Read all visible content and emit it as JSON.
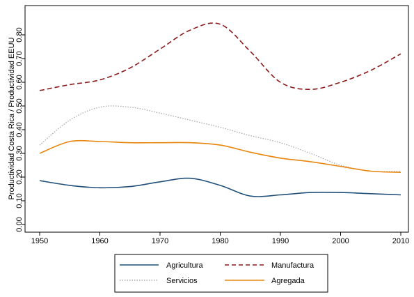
{
  "chart_data": {
    "type": "line",
    "title": "",
    "xlabel": "",
    "ylabel": "Productividad Costa Rica / Productividad EEUU",
    "xlim": [
      1950,
      2010
    ],
    "ylim": [
      0,
      0.85
    ],
    "x_ticks": [
      "1950",
      "1960",
      "1970",
      "1980",
      "1990",
      "2000",
      "2010"
    ],
    "y_ticks": [
      "0.00",
      "0.10",
      "0.20",
      "0.30",
      "0.40",
      "0.50",
      "0.60",
      "0.70",
      "0.80"
    ],
    "grid": false,
    "legend_position": "bottom",
    "series": [
      {
        "name": "Agricultura",
        "color": "#1f4e79",
        "style": "solid",
        "x": [
          1950,
          1955,
          1960,
          1965,
          1970,
          1975,
          1980,
          1985,
          1990,
          1995,
          2000,
          2005,
          2010
        ],
        "y": [
          0.185,
          0.165,
          0.155,
          0.16,
          0.18,
          0.195,
          0.165,
          0.12,
          0.125,
          0.135,
          0.135,
          0.13,
          0.125
        ]
      },
      {
        "name": "Manufactura",
        "color": "#8b1a1a",
        "style": "dashed",
        "x": [
          1950,
          1955,
          1960,
          1965,
          1970,
          1975,
          1980,
          1985,
          1990,
          1995,
          2000,
          2005,
          2010
        ],
        "y": [
          0.565,
          0.59,
          0.61,
          0.66,
          0.74,
          0.82,
          0.845,
          0.73,
          0.6,
          0.57,
          0.6,
          0.65,
          0.72
        ]
      },
      {
        "name": "Servicios",
        "color": "#a9a9a9",
        "style": "dotted",
        "x": [
          1950,
          1955,
          1960,
          1965,
          1970,
          1975,
          1980,
          1985,
          1990,
          1995,
          2000,
          2005,
          2010
        ],
        "y": [
          0.335,
          0.44,
          0.495,
          0.495,
          0.47,
          0.44,
          0.41,
          0.375,
          0.345,
          0.3,
          0.25,
          0.225,
          0.225
        ]
      },
      {
        "name": "Agregada",
        "color": "#e8850c",
        "style": "solid",
        "x": [
          1950,
          1955,
          1960,
          1965,
          1970,
          1975,
          1980,
          1985,
          1990,
          1995,
          2000,
          2005,
          2010
        ],
        "y": [
          0.3,
          0.35,
          0.35,
          0.345,
          0.345,
          0.345,
          0.335,
          0.305,
          0.28,
          0.265,
          0.245,
          0.225,
          0.22
        ]
      }
    ]
  }
}
